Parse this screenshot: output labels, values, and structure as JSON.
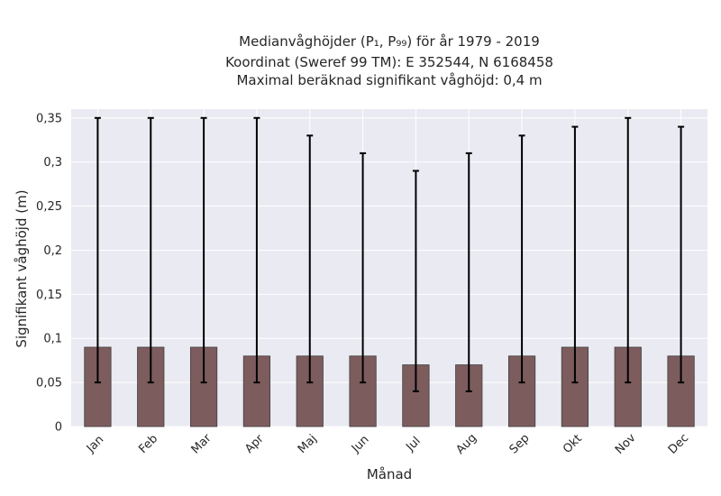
{
  "chart_data": {
    "type": "bar",
    "title_lines": [
      "Medianvåghöjder (P₁, P₉₉) för år 1979 - 2019",
      "Koordinat (Sweref 99 TM): E 352544, N 6168458",
      "Maximal beräknad signifikant våghöjd: 0,4 m"
    ],
    "xlabel": "Månad",
    "ylabel": "Signifikant våghöjd (m)",
    "categories": [
      "Jan",
      "Feb",
      "Mar",
      "Apr",
      "Maj",
      "Jun",
      "Jul",
      "Aug",
      "Sep",
      "Okt",
      "Nov",
      "Dec"
    ],
    "values": [
      0.09,
      0.09,
      0.09,
      0.08,
      0.08,
      0.08,
      0.07,
      0.07,
      0.08,
      0.09,
      0.09,
      0.08
    ],
    "p1": [
      0.05,
      0.05,
      0.05,
      0.05,
      0.05,
      0.05,
      0.04,
      0.04,
      0.05,
      0.05,
      0.05,
      0.05
    ],
    "p99": [
      0.35,
      0.35,
      0.35,
      0.35,
      0.33,
      0.31,
      0.29,
      0.31,
      0.33,
      0.34,
      0.35,
      0.34
    ],
    "ylim": [
      0,
      0.36
    ],
    "yticks": [
      0,
      0.05,
      0.1,
      0.15,
      0.2,
      0.25,
      0.3,
      0.35
    ],
    "ytick_labels": [
      "0",
      "0,05",
      "0,1",
      "0,15",
      "0,2",
      "0,25",
      "0,3",
      "0,35"
    ],
    "grid": true,
    "bar_color": "#7d5c5e",
    "bar_edge_color": "#3f3f3f",
    "errorbar_color": "#000000",
    "plot_background": "#eaeaf2"
  }
}
